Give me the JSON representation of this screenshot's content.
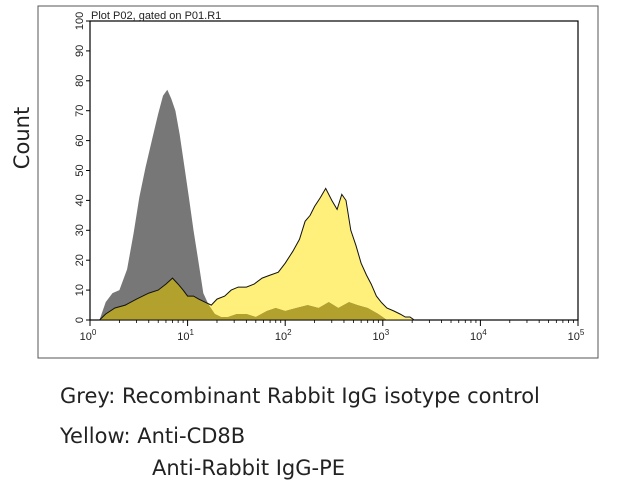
{
  "chart_data": {
    "type": "area",
    "title": "Plot P02, gated on P01.R1",
    "xlabel": "",
    "ylabel": "Count",
    "xscale": "log",
    "xlim": [
      1,
      100000
    ],
    "ylim": [
      0,
      100
    ],
    "xticks": [
      1,
      10,
      100,
      1000,
      10000,
      100000
    ],
    "yticks": [
      0,
      10,
      20,
      30,
      40,
      50,
      60,
      70,
      80,
      90,
      100
    ],
    "ytick_labels": [
      "0",
      "10",
      "20",
      "30",
      "40",
      "50",
      "60",
      "70",
      "80",
      "90",
      "100"
    ],
    "legend": "none",
    "grid": false,
    "series": [
      {
        "color": "#6b6b6b",
        "x": [
          1.25,
          1.45,
          1.7,
          2.0,
          2.4,
          2.8,
          3.2,
          3.7,
          4.3,
          5.0,
          5.6,
          6.2,
          6.8,
          7.5,
          8.3,
          9.2,
          10.3,
          11.5,
          13.0,
          14.5,
          16.5,
          19.0,
          22.0,
          26.0,
          32.0,
          40.0,
          50.0,
          65.0,
          80.0,
          100.0,
          130.0,
          170.0,
          220.0,
          280.0,
          350.0,
          450.0,
          550.0,
          700.0,
          900.0,
          1100.0
        ],
        "y": [
          0,
          6,
          9,
          10,
          17,
          29,
          41,
          51,
          60,
          69,
          75,
          77,
          74,
          70,
          62,
          52,
          41,
          30,
          19,
          9,
          5,
          2,
          1,
          1,
          2,
          2,
          1,
          3,
          4,
          3,
          4,
          5,
          4,
          6,
          4,
          6,
          5,
          4,
          2,
          0
        ]
      },
      {
        "color": "#fef07a",
        "x": [
          1.25,
          1.45,
          1.8,
          2.3,
          3.0,
          4.0,
          5.0,
          6.0,
          7.0,
          8.0,
          9.0,
          10.0,
          11.5,
          13.0,
          15.0,
          17.5,
          20.0,
          24.0,
          28.0,
          33.0,
          40.0,
          48.0,
          58.0,
          70.0,
          85.0,
          100.0,
          120.0,
          140.0,
          160.0,
          180.0,
          200.0,
          230.0,
          260.0,
          300.0,
          340.0,
          380.0,
          420.0,
          470.0,
          530.0,
          600.0,
          680.0,
          760.0,
          860.0,
          960.0,
          1100.0,
          1300.0,
          1500.0,
          1700.0,
          1900.0,
          2100.0
        ],
        "y": [
          0,
          2,
          4,
          5,
          7,
          9,
          10,
          12,
          14,
          12,
          10,
          8,
          8,
          7,
          6,
          5,
          7,
          8,
          10,
          11,
          11,
          12,
          14,
          15,
          16,
          19,
          23,
          27,
          33,
          35,
          38,
          41,
          44,
          40,
          37,
          42,
          40,
          30,
          25,
          19,
          15,
          12,
          8,
          6,
          4,
          3,
          2,
          1,
          1,
          0
        ]
      }
    ]
  },
  "caption": {
    "line1": "Grey: Recombinant Rabbit IgG isotype control",
    "line2": "Yellow: Anti-CD8B",
    "line3": "Anti-Rabbit IgG-PE"
  }
}
